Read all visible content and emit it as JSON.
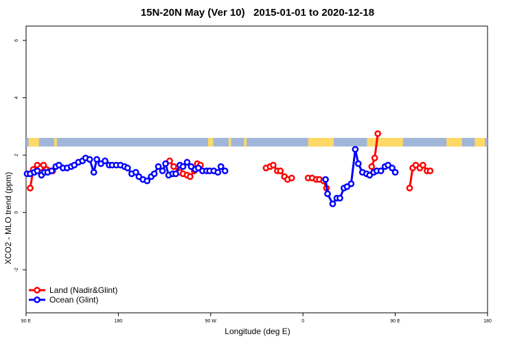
{
  "chart_data": {
    "type": "line",
    "title": "15N-20N May (Ver 10)   2015-01-01 to 2020-12-18",
    "xlabel": "Longitude (deg E)",
    "ylabel": "XCO2 - MLO trend (ppm)",
    "xlim": [
      90,
      450
    ],
    "ylim": [
      -3.5,
      6.5
    ],
    "x_ticks": [
      {
        "value": 90,
        "label": "90 E"
      },
      {
        "value": 180,
        "label": "180"
      },
      {
        "value": 270,
        "label": "90 W"
      },
      {
        "value": 360,
        "label": "0"
      },
      {
        "value": 450,
        "label": "90 E"
      },
      {
        "value": 540,
        "label": "180"
      }
    ],
    "y_ticks": [
      -2,
      0,
      2,
      4,
      6
    ],
    "grid": false,
    "legend_position": "bottom-left",
    "land_band": {
      "ymin": 2.3,
      "ymax": 2.6
    },
    "series": [
      {
        "name": "Land (Nadir&Glint)",
        "color": "#ff0000",
        "segments": [
          [
            [
              94,
              0.85
            ],
            [
              97,
              1.5
            ],
            [
              101,
              1.65
            ],
            [
              104,
              1.55
            ],
            [
              107,
              1.65
            ],
            [
              110,
              1.5
            ],
            [
              113,
              1.45
            ],
            [
              116,
              1.45
            ]
          ],
          [
            [
              230,
              1.8
            ],
            [
              234,
              1.6
            ],
            [
              240,
              1.4
            ],
            [
              243,
              1.35
            ],
            [
              247,
              1.3
            ],
            [
              250,
              1.25
            ],
            [
              254,
              1.45
            ],
            [
              257,
              1.7
            ],
            [
              260,
              1.65
            ]
          ],
          [
            [
              324,
              1.55
            ],
            [
              328,
              1.6
            ],
            [
              331,
              1.65
            ],
            [
              335,
              1.45
            ],
            [
              338,
              1.45
            ],
            [
              342,
              1.25
            ],
            [
              345,
              1.15
            ],
            [
              349,
              1.2
            ]
          ],
          [
            [
              365,
              1.2
            ],
            [
              369,
              1.2
            ],
            [
              373,
              1.15
            ],
            [
              376,
              1.15
            ],
            [
              380,
              1.1
            ],
            [
              383,
              0.85
            ]
          ],
          [
            [
              427,
              1.6
            ],
            [
              430,
              1.9
            ],
            [
              433,
              2.75
            ]
          ],
          [
            [
              464,
              0.85
            ],
            [
              467,
              1.55
            ],
            [
              470,
              1.65
            ],
            [
              474,
              1.55
            ],
            [
              477,
              1.65
            ],
            [
              481,
              1.45
            ],
            [
              484,
              1.45
            ]
          ]
        ]
      },
      {
        "name": "Ocean (Glint)",
        "color": "#0000ff",
        "segments": [
          [
            [
              91,
              1.35
            ],
            [
              94,
              1.35
            ],
            [
              98,
              1.4
            ],
            [
              101,
              1.45
            ],
            [
              105,
              1.3
            ],
            [
              108,
              1.4
            ],
            [
              111,
              1.4
            ],
            [
              115,
              1.45
            ],
            [
              119,
              1.6
            ],
            [
              122,
              1.65
            ],
            [
              126,
              1.55
            ],
            [
              130,
              1.55
            ],
            [
              134,
              1.6
            ],
            [
              137,
              1.65
            ],
            [
              141,
              1.75
            ],
            [
              145,
              1.8
            ],
            [
              148,
              1.9
            ],
            [
              152,
              1.85
            ],
            [
              156,
              1.4
            ],
            [
              159,
              1.85
            ],
            [
              163,
              1.7
            ],
            [
              167,
              1.8
            ],
            [
              171,
              1.65
            ],
            [
              174,
              1.65
            ],
            [
              178,
              1.65
            ],
            [
              182,
              1.65
            ],
            [
              186,
              1.6
            ],
            [
              189,
              1.55
            ],
            [
              193,
              1.35
            ],
            [
              197,
              1.4
            ],
            [
              200,
              1.25
            ],
            [
              204,
              1.15
            ],
            [
              208,
              1.1
            ],
            [
              212,
              1.25
            ],
            [
              215,
              1.35
            ],
            [
              219,
              1.6
            ],
            [
              223,
              1.45
            ],
            [
              226,
              1.7
            ],
            [
              229,
              1.3
            ],
            [
              233,
              1.35
            ],
            [
              236,
              1.35
            ],
            [
              240,
              1.65
            ],
            [
              243,
              1.6
            ],
            [
              247,
              1.75
            ],
            [
              251,
              1.6
            ],
            [
              255,
              1.5
            ],
            [
              258,
              1.55
            ],
            [
              262,
              1.45
            ],
            [
              266,
              1.45
            ],
            [
              269,
              1.45
            ],
            [
              273,
              1.45
            ],
            [
              277,
              1.4
            ],
            [
              280,
              1.6
            ],
            [
              284,
              1.45
            ]
          ],
          [
            [
              382,
              1.15
            ],
            [
              384,
              0.65
            ],
            [
              389,
              0.3
            ],
            [
              393,
              0.5
            ],
            [
              396,
              0.5
            ],
            [
              400,
              0.85
            ],
            [
              403,
              0.9
            ],
            [
              407,
              1.0
            ],
            [
              411,
              2.2
            ],
            [
              414,
              1.7
            ],
            [
              418,
              1.4
            ],
            [
              422,
              1.35
            ],
            [
              425,
              1.3
            ],
            [
              429,
              1.4
            ],
            [
              432,
              1.45
            ],
            [
              436,
              1.45
            ],
            [
              440,
              1.6
            ],
            [
              443,
              1.65
            ],
            [
              447,
              1.55
            ],
            [
              450,
              1.4
            ]
          ]
        ]
      }
    ]
  },
  "legend": [
    {
      "label": "Land (Nadir&Glint)",
      "color": "#ff0000"
    },
    {
      "label": "Ocean (Glint)",
      "color": "#0000ff"
    }
  ],
  "colors": {
    "land_band": "#ffd966",
    "ocean_band": "#9fb6d9",
    "axis": "#000000"
  }
}
